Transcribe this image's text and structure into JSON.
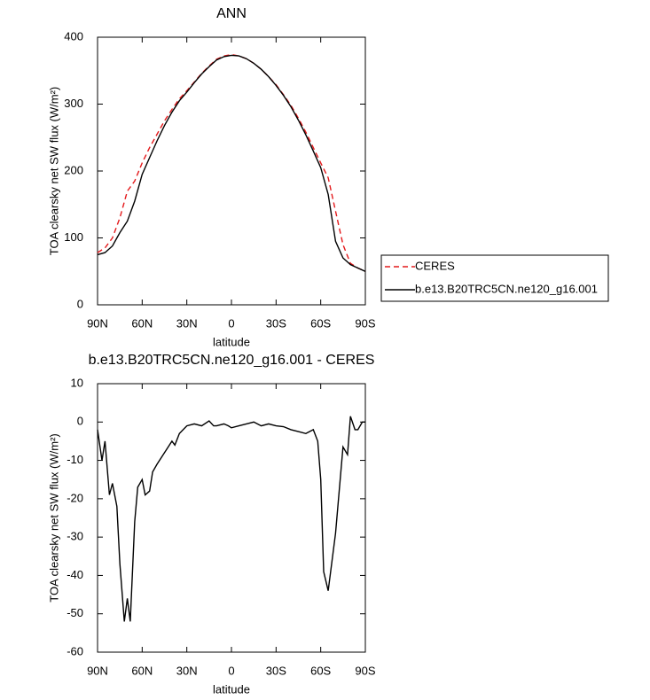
{
  "chart_data": [
    {
      "type": "line",
      "title": "ANN",
      "xlabel": "latitude",
      "ylabel": "TOA clearsky net SW flux (W/m²)",
      "x": [
        90,
        85,
        80,
        75,
        70,
        65,
        60,
        55,
        50,
        45,
        40,
        35,
        30,
        25,
        20,
        15,
        10,
        5,
        0,
        -5,
        -10,
        -15,
        -20,
        -25,
        -30,
        -35,
        -40,
        -45,
        -50,
        -55,
        -60,
        -65,
        -70,
        -75,
        -80,
        -85,
        -90
      ],
      "xlim": [
        90,
        -90
      ],
      "xticks": [
        {
          "value": 90,
          "label": "90N"
        },
        {
          "value": 60,
          "label": "60N"
        },
        {
          "value": 30,
          "label": "30N"
        },
        0,
        {
          "value": -30,
          "label": "30S"
        },
        {
          "value": -60,
          "label": "60S"
        },
        {
          "value": -90,
          "label": "90S"
        }
      ],
      "ylim": [
        0,
        400
      ],
      "yticks": [
        0,
        100,
        200,
        300,
        400
      ],
      "legend": "outside-right",
      "series": [
        {
          "name": "CERES",
          "color": "#e41a1c",
          "dashed": true,
          "values": [
            78,
            85,
            100,
            130,
            170,
            185,
            212,
            235,
            255,
            275,
            292,
            308,
            320,
            333,
            346,
            357,
            367,
            372,
            374,
            372,
            368,
            361,
            352,
            341,
            329,
            314,
            298,
            279,
            258,
            235,
            212,
            190,
            140,
            90,
            62,
            55,
            50
          ]
        },
        {
          "name": "b.e13.B20TRC5CN.ne120_g16.001",
          "color": "#000000",
          "dashed": false,
          "values": [
            75,
            78,
            88,
            108,
            125,
            155,
            195,
            220,
            245,
            268,
            288,
            305,
            318,
            332,
            345,
            356,
            366,
            371,
            373,
            372,
            368,
            361,
            352,
            341,
            328,
            313,
            296,
            276,
            254,
            230,
            205,
            165,
            95,
            70,
            60,
            55,
            50
          ]
        }
      ]
    },
    {
      "type": "line",
      "title": "b.e13.B20TRC5CN.ne120_g16.001 - CERES",
      "xlabel": "latitude",
      "ylabel": "TOA clearsky net SW flux (W/m²)",
      "x": [
        90,
        87,
        85,
        82,
        80,
        77,
        75,
        72,
        70,
        68,
        65,
        63,
        60,
        58,
        55,
        53,
        50,
        45,
        40,
        38,
        35,
        30,
        25,
        20,
        15,
        12,
        10,
        5,
        2,
        0,
        -5,
        -10,
        -15,
        -20,
        -25,
        -30,
        -35,
        -40,
        -45,
        -50,
        -55,
        -58,
        -60,
        -62,
        -65,
        -70,
        -75,
        -78,
        -80,
        -83,
        -85,
        -88,
        -90
      ],
      "xlim": [
        90,
        -90
      ],
      "xticks": [
        {
          "value": 90,
          "label": "90N"
        },
        {
          "value": 60,
          "label": "60N"
        },
        {
          "value": 30,
          "label": "30N"
        },
        0,
        {
          "value": -30,
          "label": "30S"
        },
        {
          "value": -60,
          "label": "60S"
        },
        {
          "value": -90,
          "label": "90S"
        }
      ],
      "ylim": [
        -60,
        10
      ],
      "yticks": [
        -60,
        -50,
        -40,
        -30,
        -20,
        -10,
        0,
        10
      ],
      "series": [
        {
          "color": "#000000",
          "dashed": false,
          "values": [
            -2,
            -10,
            -5,
            -19,
            -16,
            -22,
            -37,
            -52,
            -46,
            -52,
            -26,
            -17,
            -15,
            -19,
            -18,
            -13,
            -11,
            -8,
            -5,
            -6,
            -3,
            -1,
            -0.5,
            -1,
            0.3,
            -1,
            -1,
            -0.5,
            -1,
            -1.5,
            -1,
            -0.5,
            0,
            -1,
            -0.5,
            -1,
            -1.2,
            -2,
            -2.5,
            -3,
            -2,
            -5,
            -15,
            -39,
            -44,
            -29,
            -6.5,
            -8.5,
            1.5,
            -2,
            -2,
            0,
            0
          ]
        }
      ]
    }
  ]
}
